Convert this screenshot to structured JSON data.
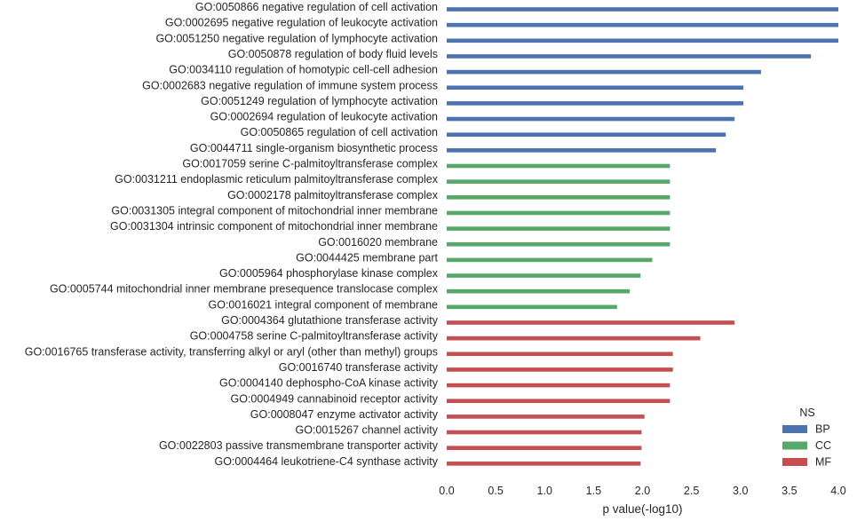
{
  "chart_data": {
    "type": "bar",
    "orientation": "horizontal",
    "xlabel": "p value(-log10)",
    "ylabel": "",
    "xlim": [
      0,
      4.0
    ],
    "xticks": [
      0.0,
      0.5,
      1.0,
      1.5,
      2.0,
      2.5,
      3.0,
      3.5,
      4.0
    ],
    "tick_labels": [
      "0.0",
      "0.5",
      "1.0",
      "1.5",
      "2.0",
      "2.5",
      "3.0",
      "3.5",
      "4.0"
    ],
    "grid": false,
    "legend": {
      "title": "NS",
      "position": "bottom-right",
      "entries": [
        {
          "name": "BP",
          "color": "#4c72b0"
        },
        {
          "name": "CC",
          "color": "#55a868"
        },
        {
          "name": "MF",
          "color": "#c44e52"
        }
      ]
    },
    "categories": [
      "GO:0050866 negative regulation of cell activation",
      "GO:0002695 negative regulation of leukocyte activation",
      "GO:0051250 negative regulation of lymphocyte activation",
      "GO:0050878 regulation of body fluid levels",
      "GO:0034110 regulation of homotypic cell-cell adhesion",
      "GO:0002683 negative regulation of immune system process",
      "GO:0051249 regulation of lymphocyte activation",
      "GO:0002694 regulation of leukocyte activation",
      "GO:0050865 regulation of cell activation",
      "GO:0044711 single-organism biosynthetic process",
      "GO:0017059 serine C-palmitoyltransferase complex",
      "GO:0031211 endoplasmic reticulum palmitoyltransferase complex",
      "GO:0002178 palmitoyltransferase complex",
      "GO:0031305 integral component of mitochondrial inner membrane",
      "GO:0031304 intrinsic component of mitochondrial inner membrane",
      "GO:0016020 membrane",
      "GO:0044425 membrane part",
      "GO:0005964 phosphorylase kinase complex",
      "GO:0005744 mitochondrial inner membrane presequence translocase complex",
      "GO:0016021 integral component of membrane",
      "GO:0004364 glutathione transferase activity",
      "GO:0004758 serine C-palmitoyltransferase activity",
      "GO:0016765 transferase activity, transferring alkyl or aryl (other than methyl) groups",
      "GO:0016740 transferase activity",
      "GO:0004140 dephospho-CoA kinase activity",
      "GO:0004949 cannabinoid receptor activity",
      "GO:0008047 enzyme activator activity",
      "GO:0015267 channel activity",
      "GO:0022803 passive transmembrane transporter activity",
      "GO:0004464 leukotriene-C4 synthase activity"
    ],
    "values": [
      4.0,
      4.0,
      4.0,
      3.72,
      3.21,
      3.03,
      3.03,
      2.94,
      2.85,
      2.75,
      2.28,
      2.28,
      2.28,
      2.28,
      2.28,
      2.28,
      2.1,
      1.98,
      1.87,
      1.74,
      2.94,
      2.59,
      2.31,
      2.31,
      2.28,
      2.28,
      2.02,
      1.99,
      1.99,
      1.98
    ],
    "ns": [
      "BP",
      "BP",
      "BP",
      "BP",
      "BP",
      "BP",
      "BP",
      "BP",
      "BP",
      "BP",
      "CC",
      "CC",
      "CC",
      "CC",
      "CC",
      "CC",
      "CC",
      "CC",
      "CC",
      "CC",
      "MF",
      "MF",
      "MF",
      "MF",
      "MF",
      "MF",
      "MF",
      "MF",
      "MF",
      "MF"
    ]
  }
}
